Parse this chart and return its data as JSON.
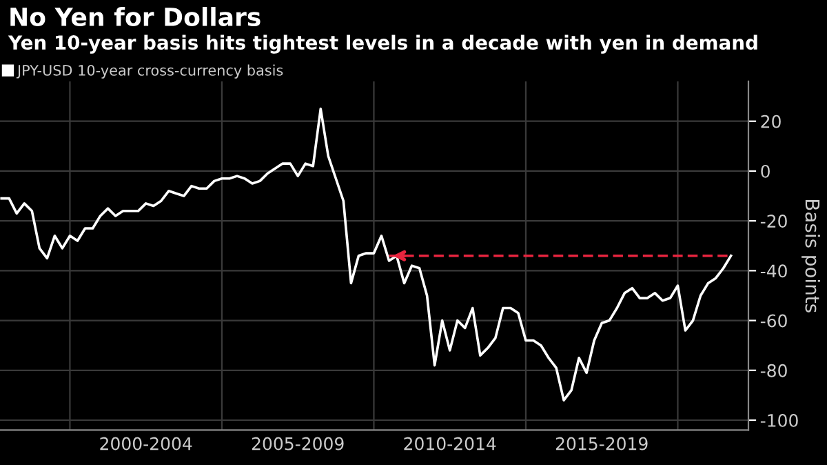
{
  "chart_data": {
    "type": "line",
    "title": "No Yen for Dollars",
    "subtitle": "Yen 10-year basis hits tightest levels in a decade with yen in demand",
    "ylabel": "Basis points",
    "categories": [
      null,
      null,
      null,
      null,
      null,
      null,
      null,
      null,
      null,
      null,
      null,
      null,
      null,
      null,
      null,
      null,
      null,
      null,
      null,
      "2000-2004",
      null,
      null,
      null,
      null,
      null,
      null,
      null,
      null,
      null,
      null,
      null,
      null,
      null,
      null,
      null,
      null,
      null,
      null,
      null,
      "2005-2009",
      null,
      null,
      null,
      null,
      null,
      null,
      null,
      null,
      null,
      null,
      null,
      null,
      null,
      null,
      null,
      null,
      null,
      null,
      null,
      "2010-2014",
      null,
      null,
      null,
      null,
      null,
      null,
      null,
      null,
      null,
      null,
      null,
      null,
      null,
      null,
      null,
      null,
      null,
      null,
      null,
      "2015-2019",
      null,
      null,
      null,
      null,
      null,
      null,
      null,
      null,
      null,
      null,
      null,
      null,
      null,
      null,
      null,
      null,
      null
    ],
    "series": [
      {
        "name": "JPY-USD 10-year cross-currency basis",
        "color": "#ffffff",
        "values": [
          -11,
          -11,
          -17,
          -13,
          -16,
          -31,
          -35,
          -26,
          -31,
          -26,
          -28,
          -23,
          -23,
          -18,
          -15,
          -18,
          -16,
          -16,
          -16,
          -13,
          -14,
          -12,
          -8,
          -9,
          -10,
          -6,
          -7,
          -7,
          -4,
          -3,
          -3,
          -2,
          -3,
          -5,
          -4,
          -1,
          1,
          3,
          3,
          -2,
          3,
          2,
          25,
          6,
          -3,
          -12,
          -45,
          -34,
          -33,
          -33,
          -26,
          -36,
          -34,
          -45,
          -38,
          -39,
          -50,
          -78,
          -60,
          -72,
          -60,
          -63,
          -55,
          -74,
          -71,
          -67,
          -55,
          -55,
          -57,
          -68,
          -68,
          -70,
          -75,
          -79,
          -92,
          -88,
          -75,
          -81,
          -68,
          -61,
          -60,
          -55,
          -49,
          -47,
          -51,
          -51,
          -49,
          -52,
          -51,
          -46,
          -64,
          -60,
          -50,
          -45,
          -43,
          -39,
          -34
        ]
      },
      {
        "type": "line",
        "color": "#e8253f",
        "line_style": "dashed",
        "values": [
          null,
          null,
          null,
          null,
          null,
          null,
          null,
          null,
          null,
          null,
          null,
          null,
          null,
          null,
          null,
          null,
          null,
          null,
          null,
          null,
          null,
          null,
          null,
          null,
          null,
          null,
          null,
          null,
          null,
          null,
          null,
          null,
          null,
          null,
          null,
          null,
          null,
          null,
          null,
          null,
          null,
          null,
          null,
          null,
          null,
          null,
          null,
          null,
          null,
          null,
          null,
          -34,
          -34,
          -34,
          -34,
          -34,
          -34,
          -34,
          -34,
          -34,
          -34,
          -34,
          -34,
          -34,
          -34,
          -34,
          -34,
          -34,
          -34,
          -34,
          -34,
          -34,
          -34,
          -34,
          -34,
          -34,
          -34,
          -34,
          -34,
          -34,
          -34,
          -34,
          -34,
          -34,
          -34,
          -34,
          -34,
          -34,
          -34,
          -34,
          -34,
          -34,
          -34,
          -34,
          -34,
          -34,
          -34
        ]
      }
    ],
    "ylim": [
      -104,
      36
    ],
    "yticks": [
      -100,
      -80,
      -60,
      -40,
      -20,
      0,
      20
    ],
    "grid": true,
    "legend": "top left"
  }
}
